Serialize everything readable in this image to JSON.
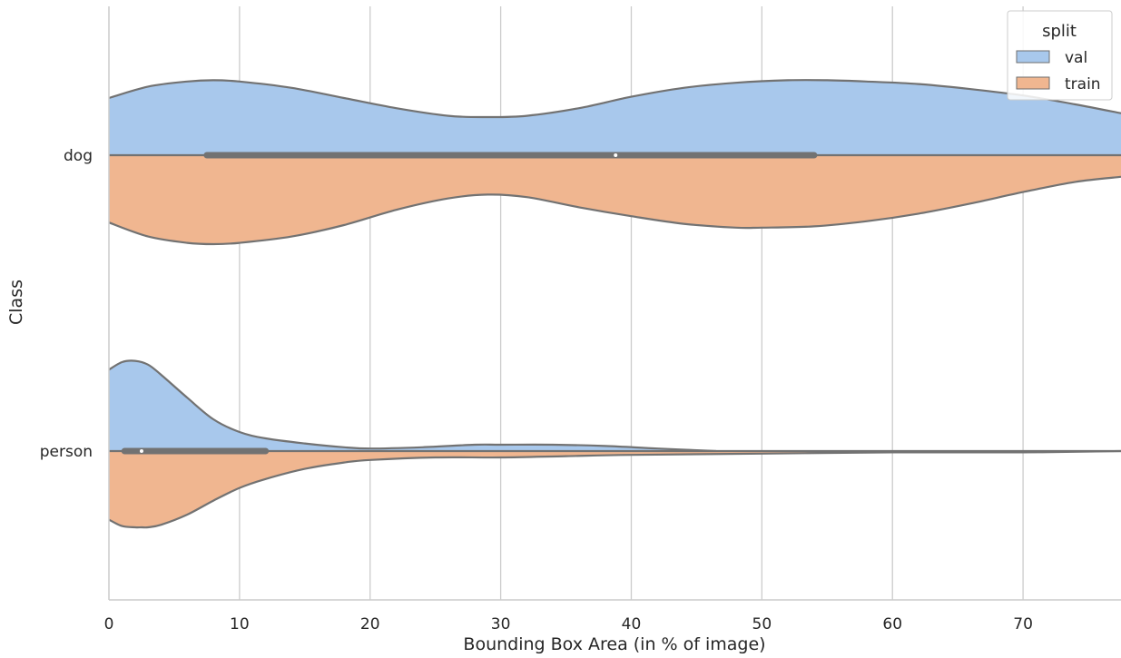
{
  "chart_data": {
    "type": "violin",
    "orientation": "horizontal",
    "split": true,
    "xlabel": "Bounding Box Area (in % of image)",
    "ylabel": "Class",
    "xlim": [
      0,
      77.5
    ],
    "x_ticks": [
      0,
      10,
      20,
      30,
      40,
      50,
      60,
      70
    ],
    "grid": "vertical",
    "categories": [
      "dog",
      "person"
    ],
    "legend": {
      "title": "split",
      "position": "top-right",
      "entries": [
        {
          "label": "val",
          "color": "#a8c8ec"
        },
        {
          "label": "train",
          "color": "#f0b690"
        }
      ]
    },
    "series": [
      {
        "name": "val",
        "color": "#a8c8ec",
        "densities": {
          "dog": {
            "x": [
              0,
              3,
              6,
              8,
              10,
              14,
              18,
              22,
              26,
              29,
              32,
              36,
              40,
              44,
              48,
              52,
              55,
              58,
              62,
              66,
              70,
              74,
              77.5
            ],
            "w": [
              0.45,
              0.54,
              0.58,
              0.59,
              0.58,
              0.53,
              0.45,
              0.37,
              0.31,
              0.3,
              0.31,
              0.37,
              0.46,
              0.53,
              0.57,
              0.59,
              0.59,
              0.58,
              0.56,
              0.52,
              0.47,
              0.4,
              0.33
            ]
          },
          "person": {
            "x": [
              0,
              1,
              2,
              3,
              4,
              6,
              8,
              10,
              12,
              15,
              18,
              20,
              24,
              28,
              30,
              34,
              38,
              42,
              46.5
            ],
            "w": [
              0.64,
              0.7,
              0.71,
              0.68,
              0.6,
              0.42,
              0.25,
              0.15,
              0.1,
              0.06,
              0.03,
              0.02,
              0.03,
              0.05,
              0.05,
              0.05,
              0.04,
              0.02,
              0.0
            ]
          }
        }
      },
      {
        "name": "train",
        "color": "#f0b690",
        "densities": {
          "dog": {
            "x": [
              0,
              3,
              6,
              8,
              10,
              14,
              18,
              22,
              26,
              29,
              32,
              36,
              40,
              44,
              48,
              50,
              54,
              58,
              62,
              66,
              70,
              74,
              77.5
            ],
            "w": [
              0.53,
              0.64,
              0.69,
              0.7,
              0.69,
              0.64,
              0.55,
              0.43,
              0.34,
              0.31,
              0.33,
              0.41,
              0.48,
              0.54,
              0.57,
              0.57,
              0.56,
              0.52,
              0.46,
              0.38,
              0.29,
              0.21,
              0.17
            ]
          },
          "person": {
            "x": [
              0,
              1,
              2,
              2.5,
              3,
              4,
              6,
              8,
              10,
              12,
              15,
              18,
              20,
              25,
              30,
              35,
              40,
              50,
              60,
              70,
              77.5
            ],
            "w": [
              0.54,
              0.59,
              0.6,
              0.6,
              0.6,
              0.58,
              0.5,
              0.39,
              0.29,
              0.22,
              0.14,
              0.09,
              0.07,
              0.05,
              0.05,
              0.04,
              0.03,
              0.02,
              0.01,
              0.01,
              0.0
            ]
          }
        }
      }
    ],
    "box": {
      "dog": {
        "q1": 7.5,
        "median": 38.8,
        "q3": 54
      },
      "person": {
        "q1": 1.2,
        "median": 2.5,
        "q3": 12
      }
    }
  }
}
